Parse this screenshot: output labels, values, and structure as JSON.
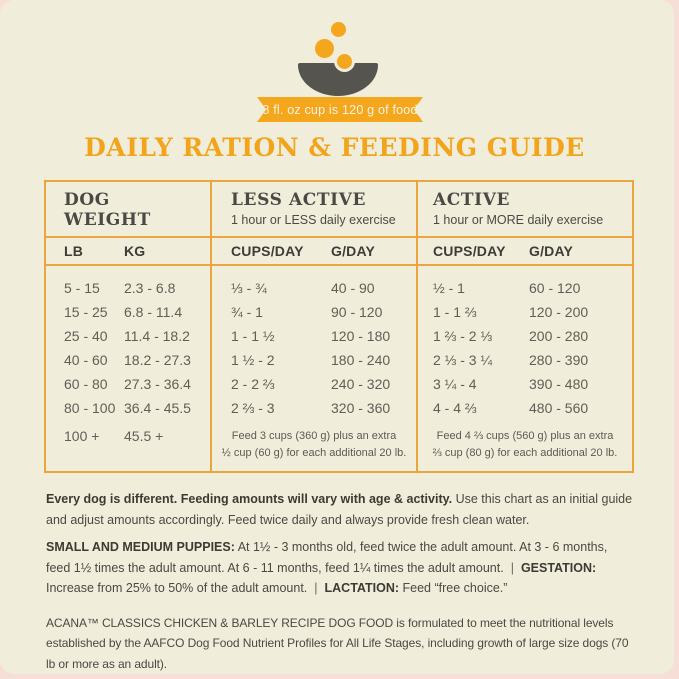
{
  "colors": {
    "accent_orange": "#F4A71D",
    "table_border_orange": "#ECA43E",
    "cream_background": "#F0EDDA",
    "bowl_gray": "#55544E",
    "dark_text": "#4A4A44",
    "data_text": "#605F56"
  },
  "badge": {
    "text": "8 fl. oz cup is 120 g of food"
  },
  "title": "DAILY RATION & FEEDING GUIDE",
  "table": {
    "groups": [
      {
        "title": "DOG WEIGHT",
        "col1": "LB",
        "col2": "KG"
      },
      {
        "title": "LESS ACTIVE",
        "subtitle": "1 hour or LESS daily exercise",
        "col1": "CUPS/DAY",
        "col2": "G/DAY"
      },
      {
        "title": "ACTIVE",
        "subtitle": "1 hour or MORE daily exercise",
        "col1": "CUPS/DAY",
        "col2": "G/DAY"
      }
    ],
    "rows": [
      {
        "lb": "5 - 15",
        "kg": "2.3 - 6.8",
        "less_cups": "⅓ - ¾",
        "less_g": "40 - 90",
        "active_cups": "½ - 1",
        "active_g": "60 - 120"
      },
      {
        "lb": "15 - 25",
        "kg": "6.8 - 11.4",
        "less_cups": "¾ - 1",
        "less_g": "90 - 120",
        "active_cups": "1 - 1 ⅔",
        "active_g": "120 - 200"
      },
      {
        "lb": "25 - 40",
        "kg": "11.4 - 18.2",
        "less_cups": "1 - 1 ½",
        "less_g": "120 - 180",
        "active_cups": "1 ⅔ - 2 ⅓",
        "active_g": "200 - 280"
      },
      {
        "lb": "40 - 60",
        "kg": "18.2 - 27.3",
        "less_cups": "1 ½ - 2",
        "less_g": "180 - 240",
        "active_cups": "2 ⅓ - 3 ¼",
        "active_g": "280 - 390"
      },
      {
        "lb": "60 - 80",
        "kg": "27.3 - 36.4",
        "less_cups": "2 - 2 ⅔",
        "less_g": "240 - 320",
        "active_cups": "3 ¼ - 4",
        "active_g": "390 - 480"
      },
      {
        "lb": "80 - 100",
        "kg": "36.4 - 45.5",
        "less_cups": "2 ⅔ - 3",
        "less_g": "320 - 360",
        "active_cups": "4 - 4 ⅔",
        "active_g": "480 - 560"
      }
    ],
    "overflow_row": {
      "lb": "100 +",
      "kg": "45.5 +",
      "less_note": "Feed 3 cups (360 g) plus an extra\n½ cup (60 g) for each additional 20 lb.",
      "active_note": "Feed 4 ⅔ cups (560 g) plus an extra\n⅔ cup (80 g) for each additional 20 lb."
    }
  },
  "notes": {
    "p1_bold": "Every dog is different. Feeding amounts will vary with age & activity.",
    "p1_rest": " Use this chart as an initial guide and adjust amounts accordingly. Feed twice daily and always provide fresh clean water.",
    "p2_b1": "SMALL AND MEDIUM PUPPIES:",
    "p2_t1": " At 1½ - 3 months old, feed twice the adult amount. At 3 - 6 months, feed 1½ times the adult amount. At 6 - 11 months, feed 1¼ times the adult amount.",
    "sep": "|",
    "p2_b2": "GESTATION:",
    "p2_t2": " Increase from 25% to 50% of the adult amount.",
    "p2_b3": "LACTATION:",
    "p2_t3": " Feed “free choice.”",
    "p3": "ACANA™ CLASSICS CHICKEN & BARLEY RECIPE DOG FOOD is formulated to meet the nutritional levels established by the AAFCO Dog Food Nutrient Profiles for All Life Stages, including growth of large size dogs (70 lb or more as an adult)."
  }
}
